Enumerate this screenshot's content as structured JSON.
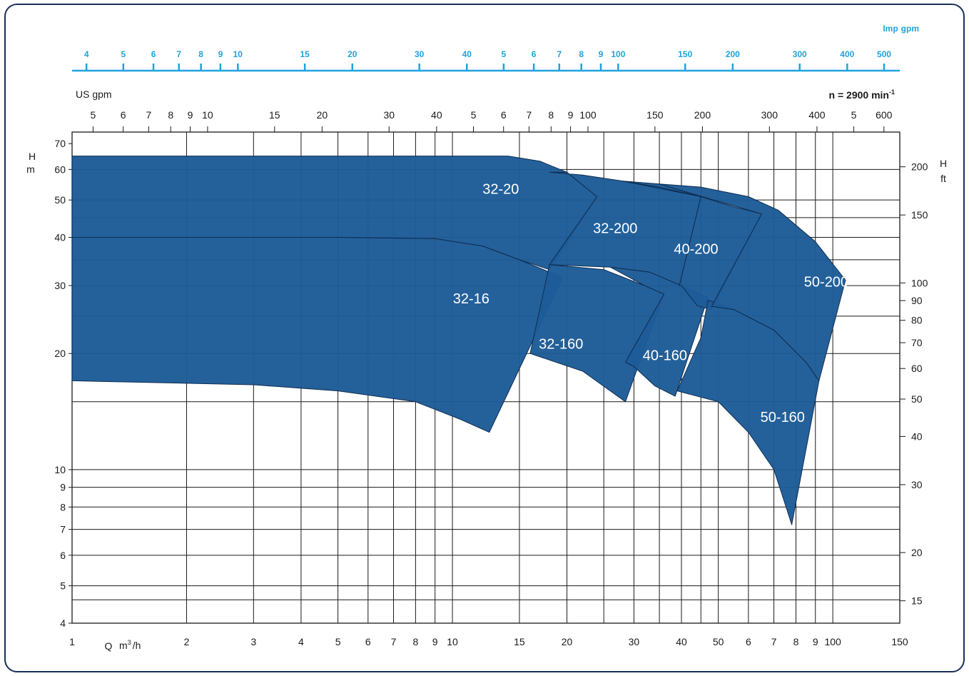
{
  "chart_data": {
    "type": "area",
    "title": "",
    "speed_label": "n = 2900 min",
    "speed_exp": "-1",
    "x_label_q": "Q",
    "x_unit": "m",
    "x_unit_exp": "3",
    "x_unit_tail": "/h",
    "y_left_label": "H",
    "y_left_unit": "m",
    "y_right_label": "H",
    "y_right_unit": "ft",
    "us_gpm_label": "US gpm",
    "imp_label": "Imp",
    "imp_unit": "gpm",
    "x_scale": "log",
    "y_scale": "log",
    "xlim": [
      1,
      150
    ],
    "ylim": [
      4,
      75
    ],
    "grid": true,
    "colors": {
      "fill": "#1d5c98",
      "edge": "#0e2c50",
      "imp_axis": "#1ea3dd",
      "frame": "#1b2f5b"
    },
    "x_ticks": [
      {
        "v": 1,
        "t": "1"
      },
      {
        "v": 2,
        "t": "2"
      },
      {
        "v": 3,
        "t": "3"
      },
      {
        "v": 4,
        "t": "4"
      },
      {
        "v": 5,
        "t": "5"
      },
      {
        "v": 6,
        "t": "6"
      },
      {
        "v": 7,
        "t": "7"
      },
      {
        "v": 8,
        "t": "8"
      },
      {
        "v": 9,
        "t": "9"
      },
      {
        "v": 10,
        "t": "10"
      },
      {
        "v": 15,
        "t": "15"
      },
      {
        "v": 20,
        "t": "20"
      },
      {
        "v": 30,
        "t": "30"
      },
      {
        "v": 40,
        "t": "40"
      },
      {
        "v": 50,
        "t": "50"
      },
      {
        "v": 60,
        "t": "6"
      },
      {
        "v": 70,
        "t": "7"
      },
      {
        "v": 80,
        "t": "8"
      },
      {
        "v": 90,
        "t": "9"
      },
      {
        "v": 100,
        "t": "100"
      },
      {
        "v": 150,
        "t": "150"
      }
    ],
    "x_grid": [
      1,
      2,
      3,
      4,
      5,
      6,
      7,
      8,
      9,
      10,
      15,
      20,
      25,
      30,
      35,
      40,
      45,
      50,
      60,
      70,
      80,
      90,
      100,
      150
    ],
    "y_ticks_m": [
      {
        "v": 4,
        "t": "4"
      },
      {
        "v": 5,
        "t": "5"
      },
      {
        "v": 6,
        "t": "6"
      },
      {
        "v": 7,
        "t": "7"
      },
      {
        "v": 8,
        "t": "8"
      },
      {
        "v": 9,
        "t": "9"
      },
      {
        "v": 10,
        "t": "10"
      },
      {
        "v": 20,
        "t": "20"
      },
      {
        "v": 30,
        "t": "30"
      },
      {
        "v": 40,
        "t": "40"
      },
      {
        "v": 50,
        "t": "50"
      },
      {
        "v": 60,
        "t": "60"
      },
      {
        "v": 70,
        "t": "70"
      }
    ],
    "y_grid_m": [
      4.6,
      5,
      6,
      7,
      8,
      9,
      10,
      15,
      20,
      25,
      30,
      35,
      40,
      45,
      50,
      60
    ],
    "y_ticks_ft": [
      {
        "v": 15,
        "t": "15"
      },
      {
        "v": 20,
        "t": "20"
      },
      {
        "v": 30,
        "t": "30"
      },
      {
        "v": 40,
        "t": "40"
      },
      {
        "v": 50,
        "t": "50"
      },
      {
        "v": 60,
        "t": "60"
      },
      {
        "v": 70,
        "t": "70"
      },
      {
        "v": 80,
        "t": "80"
      },
      {
        "v": 90,
        "t": "90"
      },
      {
        "v": 100,
        "t": "100"
      },
      {
        "v": 150,
        "t": "150"
      },
      {
        "v": 200,
        "t": "200"
      }
    ],
    "us_gpm_ticks": [
      {
        "v": 5,
        "t": "5"
      },
      {
        "v": 6,
        "t": "6"
      },
      {
        "v": 7,
        "t": "7"
      },
      {
        "v": 8,
        "t": "8"
      },
      {
        "v": 9,
        "t": "9"
      },
      {
        "v": 10,
        "t": "10"
      },
      {
        "v": 15,
        "t": "15"
      },
      {
        "v": 20,
        "t": "20"
      },
      {
        "v": 30,
        "t": "30"
      },
      {
        "v": 40,
        "t": "40"
      },
      {
        "v": 50,
        "t": "5"
      },
      {
        "v": 60,
        "t": "6"
      },
      {
        "v": 70,
        "t": "7"
      },
      {
        "v": 80,
        "t": "8"
      },
      {
        "v": 90,
        "t": "9"
      },
      {
        "v": 100,
        "t": "100"
      },
      {
        "v": 150,
        "t": "150"
      },
      {
        "v": 200,
        "t": "200"
      },
      {
        "v": 300,
        "t": "300"
      },
      {
        "v": 400,
        "t": "400"
      },
      {
        "v": 500,
        "t": "5"
      },
      {
        "v": 600,
        "t": "600"
      }
    ],
    "imp_ticks": [
      {
        "v": 4,
        "t": "4"
      },
      {
        "v": 5,
        "t": "5"
      },
      {
        "v": 6,
        "t": "6"
      },
      {
        "v": 7,
        "t": "7"
      },
      {
        "v": 8,
        "t": "8"
      },
      {
        "v": 9,
        "t": "9"
      },
      {
        "v": 10,
        "t": "10"
      },
      {
        "v": 15,
        "t": "15"
      },
      {
        "v": 20,
        "t": "20"
      },
      {
        "v": 30,
        "t": "30"
      },
      {
        "v": 40,
        "t": "40"
      },
      {
        "v": 50,
        "t": "5"
      },
      {
        "v": 60,
        "t": "6"
      },
      {
        "v": 70,
        "t": "7"
      },
      {
        "v": 80,
        "t": "8"
      },
      {
        "v": 90,
        "t": "9"
      },
      {
        "v": 100,
        "t": "100"
      },
      {
        "v": 150,
        "t": "150"
      },
      {
        "v": 200,
        "t": "200"
      },
      {
        "v": 300,
        "t": "300"
      },
      {
        "v": 400,
        "t": "400"
      },
      {
        "v": 500,
        "t": "500"
      }
    ],
    "regions": [
      {
        "name": "32-16",
        "label_at": [
          11.2,
          27.8
        ],
        "points": [
          [
            1,
            40
          ],
          [
            5,
            40
          ],
          [
            9,
            39.7
          ],
          [
            12,
            38
          ],
          [
            15,
            35
          ],
          [
            19.5,
            31.5
          ],
          [
            12.5,
            12.5
          ],
          [
            10.5,
            13.5
          ],
          [
            8,
            15
          ],
          [
            5,
            16
          ],
          [
            3,
            16.6
          ],
          [
            1,
            17
          ]
        ]
      },
      {
        "name": "32-20",
        "label_at": [
          13.4,
          53.5
        ],
        "points": [
          [
            1,
            65
          ],
          [
            14,
            65
          ],
          [
            17,
            63
          ],
          [
            20,
            59
          ],
          [
            24,
            51
          ],
          [
            18,
            33
          ],
          [
            15,
            35
          ],
          [
            12,
            38
          ],
          [
            9,
            39.7
          ],
          [
            5,
            40
          ],
          [
            1,
            40
          ]
        ]
      },
      {
        "name": "32-160",
        "label_at": [
          19.3,
          21.2
        ],
        "points": [
          [
            18,
            34
          ],
          [
            25,
            33
          ],
          [
            32,
            30
          ],
          [
            36,
            28.5
          ],
          [
            28.5,
            15
          ],
          [
            22,
            18
          ],
          [
            16,
            20
          ]
        ]
      },
      {
        "name": "32-200",
        "label_at": [
          26.8,
          42.3
        ],
        "points": [
          [
            18,
            59
          ],
          [
            22,
            58
          ],
          [
            28,
            56
          ],
          [
            35,
            55
          ],
          [
            45,
            51
          ],
          [
            39.5,
            30
          ],
          [
            33,
            32.5
          ],
          [
            26,
            33.5
          ],
          [
            18,
            34
          ],
          [
            24,
            51
          ],
          [
            20,
            59
          ]
        ]
      },
      {
        "name": "40-160",
        "label_at": [
          36.2,
          19.8
        ],
        "points": [
          [
            26,
            33.5
          ],
          [
            33,
            32.5
          ],
          [
            40,
            30
          ],
          [
            47,
            28
          ],
          [
            38.5,
            15.5
          ],
          [
            34,
            16.5
          ],
          [
            30,
            18.5
          ],
          [
            28.5,
            19
          ],
          [
            36,
            28.5
          ],
          [
            32,
            30
          ]
        ]
      },
      {
        "name": "40-200",
        "label_at": [
          43.7,
          37.4
        ],
        "points": [
          [
            28,
            56
          ],
          [
            35,
            54
          ],
          [
            45,
            51
          ],
          [
            55,
            48
          ],
          [
            65,
            46
          ],
          [
            48,
            26
          ],
          [
            44,
            26.6
          ],
          [
            40,
            30
          ],
          [
            39.5,
            30
          ],
          [
            45,
            51
          ]
        ]
      },
      {
        "name": "50-160",
        "label_at": [
          73.8,
          13.7
        ],
        "points": [
          [
            47,
            27.5
          ],
          [
            55,
            26
          ],
          [
            70,
            23
          ],
          [
            85,
            19
          ],
          [
            92,
            17
          ],
          [
            78,
            7.2
          ],
          [
            70,
            10
          ],
          [
            60,
            12.5
          ],
          [
            50,
            15
          ],
          [
            39,
            16
          ],
          [
            45,
            22
          ]
        ]
      },
      {
        "name": "50-200",
        "label_at": [
          96.1,
          30.7
        ],
        "points": [
          [
            35,
            55
          ],
          [
            45,
            54
          ],
          [
            60,
            51
          ],
          [
            72,
            47
          ],
          [
            90,
            39
          ],
          [
            108,
            31
          ],
          [
            92,
            17
          ],
          [
            85,
            19
          ],
          [
            70,
            23
          ],
          [
            55,
            26
          ],
          [
            48,
            26.5
          ],
          [
            65,
            46
          ]
        ]
      }
    ]
  }
}
